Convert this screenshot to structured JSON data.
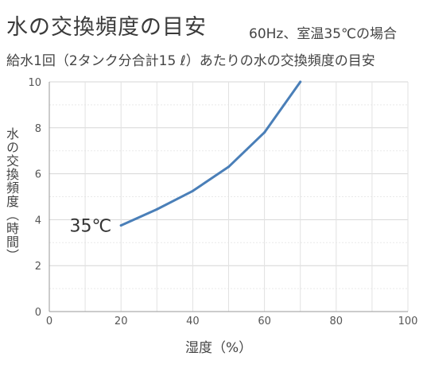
{
  "header": {
    "title": "水の交換頻度の目安",
    "condition": "60Hz、室温35℃の場合",
    "subtitle": "給水1回（2タンク分合計15 ℓ）あたりの水の交換頻度の目安"
  },
  "chart_data": {
    "type": "line",
    "title": "水の交換頻度の目安",
    "xlabel": "湿度（%）",
    "ylabel": "水の交換頻度（時間）",
    "xlim": [
      0,
      100
    ],
    "ylim": [
      0,
      10
    ],
    "x_ticks": [
      "0",
      "20",
      "40",
      "60",
      "80",
      "100"
    ],
    "y_ticks": [
      "0",
      "2",
      "4",
      "6",
      "8",
      "10"
    ],
    "grid": true,
    "series": [
      {
        "name": "35℃",
        "color": "#4a7fb8",
        "x": [
          20,
          30,
          40,
          50,
          60,
          70
        ],
        "y": [
          3.75,
          4.45,
          5.25,
          6.3,
          7.8,
          10
        ]
      }
    ]
  }
}
